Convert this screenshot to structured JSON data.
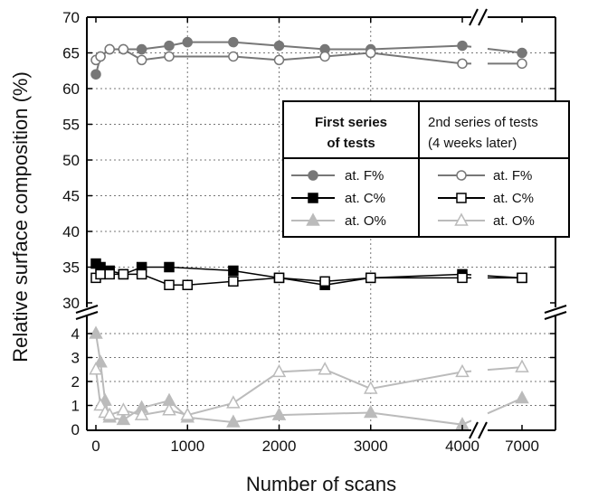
{
  "chart_data": {
    "type": "line",
    "xlabel": "Number of scans",
    "ylabel": "Relative surface composition (%)",
    "x_ticks": [
      "0",
      "1000",
      "2000",
      "3000",
      "4000",
      "7000"
    ],
    "x_axis_break": "between 4000 and 7000",
    "y_axis_break": "between 4.5 and 30",
    "y_ticks_lower": [
      "0",
      "1",
      "2",
      "3",
      "4"
    ],
    "y_ticks_upper": [
      "30",
      "35",
      "40",
      "45",
      "50",
      "55",
      "60",
      "65",
      "70"
    ],
    "grid": true,
    "legend": {
      "placement": "center-right",
      "group1_title": [
        "First series",
        "of tests"
      ],
      "group2_title": [
        "2nd series of tests",
        "(4 weeks later)"
      ],
      "entries": [
        "at. F%",
        "at. C%",
        "at. O%"
      ]
    },
    "series": [
      {
        "name": "at. F%",
        "group": "first",
        "marker": "circle-filled",
        "color": "#777777",
        "x": [
          0,
          50,
          150,
          300,
          500,
          800,
          1000,
          1500,
          2000,
          2500,
          3000,
          4000,
          7000
        ],
        "y": [
          62,
          64.5,
          65.5,
          65.5,
          65.5,
          66,
          66.5,
          66.5,
          66,
          65.5,
          65.5,
          66,
          65
        ]
      },
      {
        "name": "at. F%",
        "group": "second",
        "marker": "circle-open",
        "color": "#777777",
        "x": [
          0,
          50,
          150,
          300,
          500,
          800,
          1500,
          2000,
          2500,
          3000,
          4000,
          7000
        ],
        "y": [
          64,
          64.5,
          65.5,
          65.5,
          64,
          64.5,
          64.5,
          64,
          64.5,
          65,
          63.5,
          63.5
        ]
      },
      {
        "name": "at. C%",
        "group": "first",
        "marker": "square-filled",
        "color": "#000000",
        "x": [
          0,
          50,
          150,
          300,
          500,
          800,
          1500,
          2000,
          2500,
          3000,
          4000,
          7000
        ],
        "y": [
          35.5,
          35,
          34.5,
          34,
          35,
          35,
          34.5,
          33.5,
          32.5,
          33.5,
          34,
          33.5
        ]
      },
      {
        "name": "at. C%",
        "group": "second",
        "marker": "square-open",
        "color": "#000000",
        "x": [
          0,
          50,
          150,
          300,
          500,
          800,
          1000,
          1500,
          2000,
          2500,
          3000,
          4000,
          7000
        ],
        "y": [
          33.5,
          34,
          34,
          34,
          34,
          32.5,
          32.5,
          33,
          33.5,
          33,
          33.5,
          33.5,
          33.5
        ]
      },
      {
        "name": "at. O%",
        "group": "first",
        "marker": "triangle-filled",
        "color": "#bbbbbb",
        "x": [
          0,
          50,
          100,
          150,
          300,
          500,
          800,
          1000,
          1500,
          2000,
          3000,
          4000,
          7000
        ],
        "y": [
          4,
          2.8,
          1.2,
          0.5,
          0.4,
          0.9,
          1.2,
          0.5,
          0.3,
          0.6,
          0.7,
          0.2,
          1.3
        ]
      },
      {
        "name": "at. O%",
        "group": "second",
        "marker": "triangle-open",
        "color": "#bbbbbb",
        "x": [
          0,
          50,
          100,
          150,
          300,
          500,
          800,
          1000,
          1500,
          2000,
          2500,
          3000,
          4000,
          7000
        ],
        "y": [
          2.5,
          1,
          0.7,
          0.6,
          0.8,
          0.6,
          0.8,
          0.6,
          1.1,
          2.4,
          2.5,
          1.7,
          2.4,
          2.6
        ]
      }
    ]
  }
}
